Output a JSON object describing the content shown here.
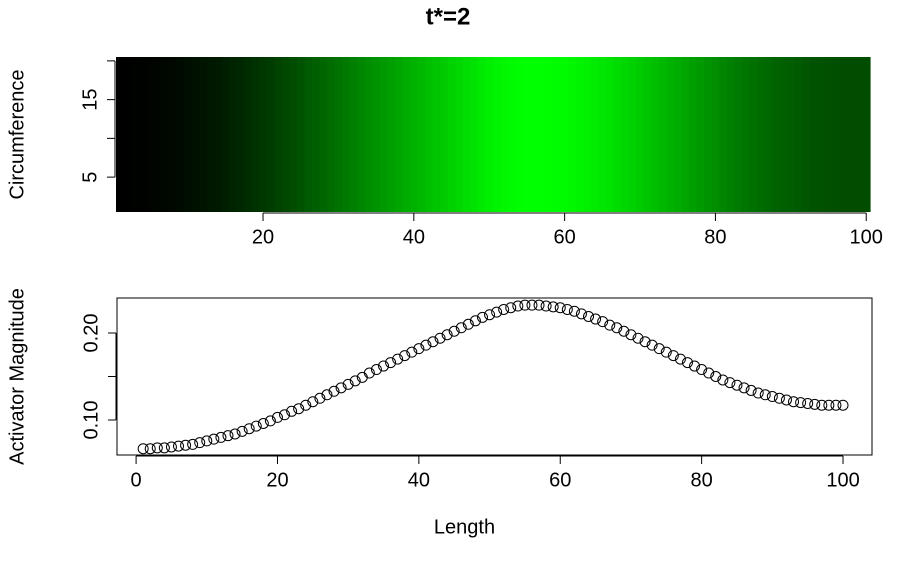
{
  "title": "t*=2",
  "chart_data": [
    {
      "type": "heatmap",
      "y_label": "Circumference",
      "x": [
        1,
        2,
        3,
        4,
        5,
        6,
        7,
        8,
        9,
        10,
        11,
        12,
        13,
        14,
        15,
        16,
        17,
        18,
        19,
        20,
        21,
        22,
        23,
        24,
        25,
        26,
        27,
        28,
        29,
        30,
        31,
        32,
        33,
        34,
        35,
        36,
        37,
        38,
        39,
        40,
        41,
        42,
        43,
        44,
        45,
        46,
        47,
        48,
        49,
        50,
        51,
        52,
        53,
        54,
        55,
        56,
        57,
        58,
        59,
        60,
        61,
        62,
        63,
        64,
        65,
        66,
        67,
        68,
        69,
        70,
        71,
        72,
        73,
        74,
        75,
        76,
        77,
        78,
        79,
        80,
        81,
        82,
        83,
        84,
        85,
        86,
        87,
        88,
        89,
        90,
        91,
        92,
        93,
        94,
        95,
        96,
        97,
        98,
        99,
        100
      ],
      "values": [
        0.067,
        0.067,
        0.068,
        0.068,
        0.069,
        0.07,
        0.071,
        0.072,
        0.074,
        0.076,
        0.078,
        0.08,
        0.082,
        0.084,
        0.087,
        0.09,
        0.093,
        0.096,
        0.099,
        0.103,
        0.106,
        0.11,
        0.113,
        0.117,
        0.121,
        0.125,
        0.129,
        0.133,
        0.137,
        0.141,
        0.145,
        0.149,
        0.154,
        0.158,
        0.162,
        0.166,
        0.17,
        0.174,
        0.178,
        0.182,
        0.186,
        0.19,
        0.194,
        0.198,
        0.202,
        0.206,
        0.21,
        0.214,
        0.218,
        0.221,
        0.224,
        0.227,
        0.229,
        0.231,
        0.232,
        0.232,
        0.232,
        0.231,
        0.23,
        0.229,
        0.227,
        0.225,
        0.222,
        0.219,
        0.216,
        0.213,
        0.209,
        0.206,
        0.202,
        0.198,
        0.194,
        0.19,
        0.186,
        0.182,
        0.178,
        0.174,
        0.17,
        0.166,
        0.162,
        0.158,
        0.154,
        0.15,
        0.146,
        0.143,
        0.14,
        0.137,
        0.134,
        0.131,
        0.129,
        0.127,
        0.125,
        0.123,
        0.121,
        0.12,
        0.119,
        0.118,
        0.117,
        0.117,
        0.117,
        0.117
      ],
      "colorscale": [
        "#000000",
        "#00ff00"
      ],
      "xlim": [
        0.5,
        100.5
      ],
      "xticks": [
        20,
        40,
        60,
        80,
        100
      ],
      "ylim": [
        0.5,
        20.5
      ],
      "yticks": [
        5,
        15
      ],
      "minor_yticks": [
        10,
        20
      ]
    },
    {
      "type": "scatter",
      "x_label": "Length",
      "y_label": "Activator Magnitude",
      "x": [
        1,
        2,
        3,
        4,
        5,
        6,
        7,
        8,
        9,
        10,
        11,
        12,
        13,
        14,
        15,
        16,
        17,
        18,
        19,
        20,
        21,
        22,
        23,
        24,
        25,
        26,
        27,
        28,
        29,
        30,
        31,
        32,
        33,
        34,
        35,
        36,
        37,
        38,
        39,
        40,
        41,
        42,
        43,
        44,
        45,
        46,
        47,
        48,
        49,
        50,
        51,
        52,
        53,
        54,
        55,
        56,
        57,
        58,
        59,
        60,
        61,
        62,
        63,
        64,
        65,
        66,
        67,
        68,
        69,
        70,
        71,
        72,
        73,
        74,
        75,
        76,
        77,
        78,
        79,
        80,
        81,
        82,
        83,
        84,
        85,
        86,
        87,
        88,
        89,
        90,
        91,
        92,
        93,
        94,
        95,
        96,
        97,
        98,
        99,
        100
      ],
      "values": [
        0.067,
        0.067,
        0.068,
        0.068,
        0.069,
        0.07,
        0.071,
        0.072,
        0.074,
        0.076,
        0.078,
        0.08,
        0.082,
        0.084,
        0.087,
        0.09,
        0.093,
        0.096,
        0.099,
        0.103,
        0.106,
        0.11,
        0.113,
        0.117,
        0.121,
        0.125,
        0.129,
        0.133,
        0.137,
        0.141,
        0.145,
        0.149,
        0.154,
        0.158,
        0.162,
        0.166,
        0.17,
        0.174,
        0.178,
        0.182,
        0.186,
        0.19,
        0.194,
        0.198,
        0.202,
        0.206,
        0.21,
        0.214,
        0.218,
        0.221,
        0.224,
        0.227,
        0.229,
        0.231,
        0.232,
        0.232,
        0.232,
        0.231,
        0.23,
        0.229,
        0.227,
        0.225,
        0.222,
        0.219,
        0.216,
        0.213,
        0.209,
        0.206,
        0.202,
        0.198,
        0.194,
        0.19,
        0.186,
        0.182,
        0.178,
        0.174,
        0.17,
        0.166,
        0.162,
        0.158,
        0.154,
        0.15,
        0.146,
        0.143,
        0.14,
        0.137,
        0.134,
        0.131,
        0.129,
        0.127,
        0.125,
        0.123,
        0.121,
        0.12,
        0.119,
        0.118,
        0.117,
        0.117,
        0.117,
        0.117
      ],
      "color": "#000000",
      "xlim": [
        -2.7,
        104.1
      ],
      "xticks": [
        0,
        20,
        40,
        60,
        80,
        100
      ],
      "ylim": [
        0.0598,
        0.2402
      ],
      "yticks": [
        {
          "value": 0.1,
          "label": "0.10"
        },
        {
          "value": 0.2,
          "label": "0.20"
        }
      ],
      "minor_yticks": [
        0.15
      ]
    }
  ]
}
